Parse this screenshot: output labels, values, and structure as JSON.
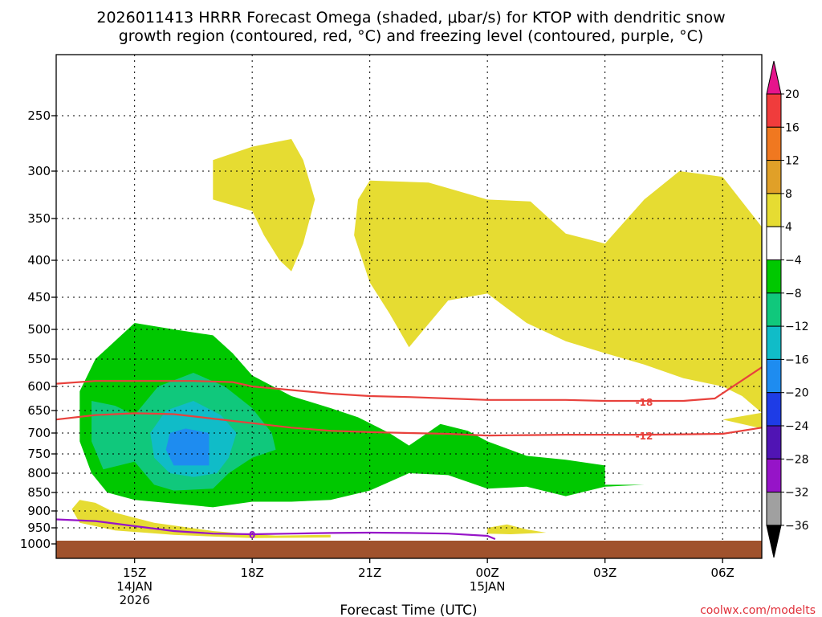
{
  "chart_data": {
    "type": "heatmap",
    "title_line1": "2026011413 HRRR Forecast Omega (shaded, μbar/s) for KTOP with dendritic snow",
    "title_line2": "growth region (contoured, red, °C) and freezing level (contoured, purple, °C)",
    "xlabel": "Forecast Time (UTC)",
    "credit": "coolwx.com/modelts",
    "x_ticks": [
      {
        "hour": 15,
        "label": "15Z",
        "sub1": "14JAN",
        "sub2": "2026"
      },
      {
        "hour": 18,
        "label": "18Z",
        "sub1": "",
        "sub2": ""
      },
      {
        "hour": 21,
        "label": "21Z",
        "sub1": "",
        "sub2": ""
      },
      {
        "hour": 24,
        "label": "00Z",
        "sub1": "15JAN",
        "sub2": ""
      },
      {
        "hour": 27,
        "label": "03Z",
        "sub1": "",
        "sub2": ""
      },
      {
        "hour": 30,
        "label": "06Z",
        "sub1": "",
        "sub2": ""
      }
    ],
    "x_range_hours": [
      13,
      31
    ],
    "y_levels_hpa": [
      250,
      300,
      350,
      400,
      450,
      500,
      550,
      600,
      650,
      700,
      750,
      800,
      850,
      900,
      950,
      1000
    ],
    "y_range_hpa": [
      200,
      1025
    ],
    "ground_level_hpa": 990,
    "colorbar": {
      "labels": [
        "20",
        "16",
        "12",
        "8",
        "4",
        "−4",
        "−8",
        "−12",
        "−16",
        "−20",
        "−24",
        "−28",
        "−32",
        "−36"
      ],
      "colors": [
        "#f03c3c",
        "#f07820",
        "#e0a028",
        "#e6dc32",
        "#ffffff",
        "#00c800",
        "#10c87c",
        "#10bcc8",
        "#1e8cf0",
        "#1e3ce6",
        "#5014b4",
        "#9614c8",
        "#a0a0a0"
      ],
      "top_arrow_color": "#e6148c",
      "bottom_arrow_color": "#000000"
    },
    "shading": [
      {
        "value_range": "4 to 8",
        "color": "#e6dc32",
        "regions": [
          [
            [
              17.0,
              290
            ],
            [
              18.0,
              278
            ],
            [
              19.0,
              271
            ],
            [
              19.3,
              290
            ],
            [
              19.6,
              330
            ],
            [
              19.3,
              380
            ],
            [
              19.0,
              415
            ],
            [
              18.7,
              400
            ],
            [
              18.3,
              370
            ],
            [
              18.0,
              342
            ],
            [
              17.0,
              330
            ]
          ],
          [
            [
              21.0,
              310
            ],
            [
              22.5,
              312
            ],
            [
              23.0,
              318
            ],
            [
              24.0,
              330
            ],
            [
              25.1,
              332
            ],
            [
              26.0,
              368
            ],
            [
              27.0,
              380
            ],
            [
              28.0,
              330
            ],
            [
              28.9,
              300
            ],
            [
              30.0,
              306
            ],
            [
              31.0,
              360
            ],
            [
              31.0,
              655
            ],
            [
              30.5,
              620
            ],
            [
              30.0,
              600
            ],
            [
              29.0,
              585
            ],
            [
              28.0,
              560
            ],
            [
              27.0,
              540
            ],
            [
              26.0,
              520
            ],
            [
              25.0,
              490
            ],
            [
              24.0,
              445
            ],
            [
              23.0,
              455
            ],
            [
              22.0,
              530
            ],
            [
              21.5,
              475
            ],
            [
              21.0,
              430
            ],
            [
              20.6,
              370
            ],
            [
              20.7,
              330
            ]
          ],
          [
            [
              31.0,
              655
            ],
            [
              30.0,
              670
            ],
            [
              31.0,
              690
            ]
          ],
          [
            [
              13.4,
              895
            ],
            [
              13.6,
              870
            ],
            [
              14.0,
              878
            ],
            [
              14.5,
              905
            ],
            [
              15.5,
              935
            ],
            [
              17.0,
              960
            ],
            [
              18.0,
              970
            ],
            [
              18.6,
              974
            ],
            [
              20.0,
              972
            ],
            [
              20.0,
              980
            ],
            [
              18.0,
              982
            ],
            [
              16.0,
              972
            ],
            [
              14.5,
              958
            ],
            [
              13.6,
              935
            ]
          ],
          [
            [
              24.0,
              950
            ],
            [
              24.5,
              940
            ],
            [
              25.0,
              955
            ],
            [
              25.5,
              965
            ],
            [
              24.6,
              970
            ],
            [
              24.0,
              968
            ]
          ]
        ]
      },
      {
        "value_range": "-8 to -4",
        "color": "#00c800",
        "regions": [
          [
            [
              13.6,
              610
            ],
            [
              14.0,
              550
            ],
            [
              15.0,
              490
            ],
            [
              16.0,
              500
            ],
            [
              17.0,
              510
            ],
            [
              17.5,
              540
            ],
            [
              18.0,
              580
            ],
            [
              19.0,
              620
            ],
            [
              20.0,
              645
            ],
            [
              20.7,
              665
            ],
            [
              21.5,
              700
            ],
            [
              22.0,
              730
            ],
            [
              22.8,
              680
            ],
            [
              23.5,
              695
            ],
            [
              24.0,
              720
            ],
            [
              25.0,
              755
            ],
            [
              26.0,
              765
            ],
            [
              27.0,
              780
            ],
            [
              27.0,
              830
            ],
            [
              28.0,
              830
            ],
            [
              27.0,
              835
            ],
            [
              26.0,
              860
            ],
            [
              25.0,
              835
            ],
            [
              24.0,
              840
            ],
            [
              23.0,
              805
            ],
            [
              22.0,
              800
            ],
            [
              21.0,
              845
            ],
            [
              20.0,
              870
            ],
            [
              19.0,
              875
            ],
            [
              18.0,
              875
            ],
            [
              17.0,
              890
            ],
            [
              16.0,
              880
            ],
            [
              15.0,
              870
            ],
            [
              14.3,
              850
            ],
            [
              13.9,
              800
            ],
            [
              13.6,
              720
            ]
          ]
        ]
      },
      {
        "value_range": "-12 to -8",
        "color": "#10c87c",
        "regions": [
          [
            [
              13.9,
              630
            ],
            [
              14.5,
              640
            ],
            [
              15.0,
              660
            ],
            [
              15.6,
              600
            ],
            [
              16.5,
              575
            ],
            [
              17.3,
              600
            ],
            [
              18.0,
              645
            ],
            [
              18.5,
              700
            ],
            [
              18.6,
              740
            ],
            [
              18.0,
              760
            ],
            [
              17.4,
              800
            ],
            [
              17.0,
              840
            ],
            [
              16.0,
              845
            ],
            [
              15.5,
              830
            ],
            [
              15.0,
              770
            ],
            [
              14.2,
              790
            ],
            [
              13.9,
              720
            ]
          ]
        ]
      },
      {
        "value_range": "-16 to -12",
        "color": "#10bcc8",
        "regions": [
          [
            [
              15.4,
              700
            ],
            [
              15.8,
              650
            ],
            [
              16.5,
              630
            ],
            [
              17.2,
              660
            ],
            [
              17.6,
              700
            ],
            [
              17.4,
              760
            ],
            [
              17.1,
              800
            ],
            [
              16.5,
              810
            ],
            [
              15.9,
              800
            ],
            [
              15.5,
              760
            ]
          ]
        ]
      },
      {
        "value_range": "-20 to -16",
        "color": "#1e8cf0",
        "regions": [
          [
            [
              15.9,
              700
            ],
            [
              16.3,
              690
            ],
            [
              16.9,
              700
            ],
            [
              16.9,
              780
            ],
            [
              16.0,
              780
            ],
            [
              15.8,
              740
            ]
          ]
        ]
      }
    ],
    "contours": [
      {
        "name": "dgz -18",
        "label": "-18",
        "label_hour": 28.0,
        "label_hpa": 632,
        "color": "#e8413c",
        "points": [
          [
            13.0,
            595
          ],
          [
            14.0,
            590
          ],
          [
            15.5,
            590
          ],
          [
            16.5,
            590
          ],
          [
            17.5,
            592
          ],
          [
            18.0,
            600
          ],
          [
            20.0,
            615
          ],
          [
            21.0,
            620
          ],
          [
            22.0,
            622
          ],
          [
            23.0,
            625
          ],
          [
            24.0,
            628
          ],
          [
            26.0,
            628
          ],
          [
            27.0,
            630
          ],
          [
            29.0,
            630
          ],
          [
            29.8,
            625
          ],
          [
            31.0,
            565
          ]
        ]
      },
      {
        "name": "dgz -12",
        "label": "-12",
        "label_hour": 28.0,
        "label_hpa": 706,
        "color": "#e8413c",
        "points": [
          [
            13.0,
            670
          ],
          [
            14.0,
            660
          ],
          [
            15.0,
            656
          ],
          [
            16.0,
            658
          ],
          [
            17.0,
            668
          ],
          [
            18.0,
            678
          ],
          [
            19.0,
            688
          ],
          [
            20.0,
            695
          ],
          [
            21.0,
            698
          ],
          [
            22.0,
            700
          ],
          [
            23.0,
            702
          ],
          [
            24.0,
            706
          ],
          [
            25.0,
            705
          ],
          [
            26.0,
            704
          ],
          [
            27.0,
            704
          ],
          [
            28.0,
            704
          ],
          [
            29.0,
            703
          ],
          [
            30.0,
            702
          ],
          [
            31.0,
            688
          ]
        ]
      },
      {
        "name": "freezing level",
        "label": "0",
        "label_hour": 18.0,
        "label_hpa": 970,
        "color": "#9614c8",
        "points": [
          [
            13.0,
            925
          ],
          [
            14.0,
            930
          ],
          [
            15.0,
            945
          ],
          [
            16.0,
            960
          ],
          [
            17.0,
            968
          ],
          [
            18.0,
            970
          ],
          [
            19.0,
            968
          ],
          [
            20.0,
            966
          ],
          [
            21.0,
            965
          ],
          [
            22.0,
            966
          ],
          [
            23.0,
            968
          ],
          [
            24.0,
            975
          ],
          [
            24.2,
            985
          ]
        ]
      }
    ]
  }
}
